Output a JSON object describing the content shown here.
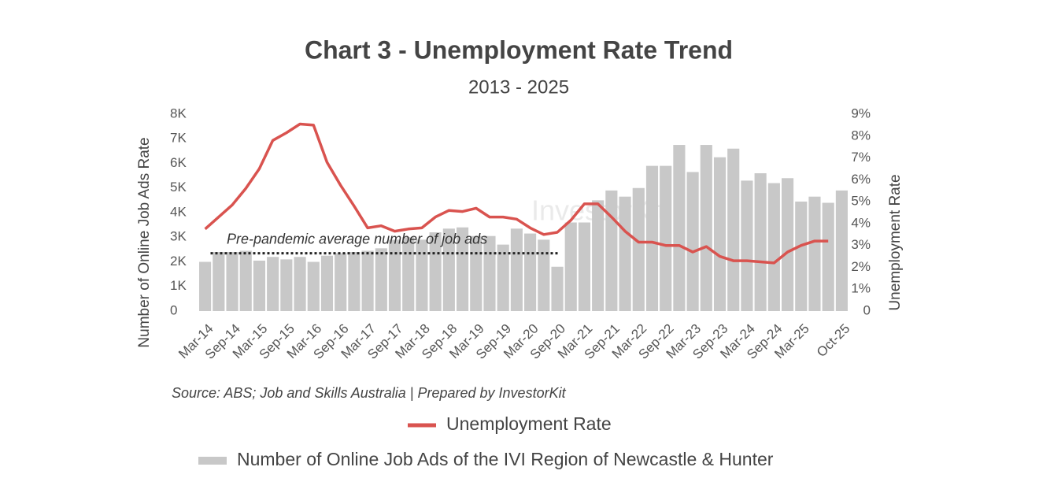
{
  "chart_data": {
    "type": "bar-line",
    "title": "Chart 3 - Unemployment Rate Trend",
    "subtitle": "2013 - 2025",
    "y_label": "Number of Online Job Ads Rate",
    "y2_label": "Unemployment Rate",
    "source": "Source: ABS; Job and Skills Australia | Prepared by InvestorKit",
    "watermark": "InvestorKit",
    "annotation": {
      "label": "Pre-pandemic average number of job ads",
      "value": 2.35
    },
    "categories": [
      "Mar-14",
      null,
      "Sep-14",
      null,
      "Mar-15",
      null,
      "Sep-15",
      null,
      "Mar-16",
      null,
      "Sep-16",
      null,
      "Mar-17",
      null,
      "Sep-17",
      null,
      "Mar-18",
      null,
      "Sep-18",
      null,
      "Mar-19",
      null,
      "Sep-19",
      null,
      "Mar-20",
      null,
      "Sep-20",
      null,
      "Mar-21",
      null,
      "Sep-21",
      null,
      "Mar-22",
      null,
      "Sep-22",
      null,
      "Mar-23",
      null,
      "Sep-23",
      null,
      "Mar-24",
      null,
      "Sep-24",
      null,
      "Mar-25",
      null,
      null,
      "Oct-25"
    ],
    "series": [
      {
        "name": "Number of Online Job Ads of the IVI Region of Newcastle & Hunter",
        "type": "bar",
        "color": "#c8c8c8",
        "values": [
          2.0,
          2.4,
          2.4,
          2.45,
          2.05,
          2.2,
          2.1,
          2.2,
          2.0,
          2.25,
          2.35,
          2.4,
          2.45,
          2.55,
          2.9,
          3.0,
          2.9,
          3.2,
          3.35,
          3.4,
          3.05,
          3.05,
          2.7,
          3.35,
          3.15,
          2.9,
          1.8,
          3.6,
          3.6,
          4.5,
          4.9,
          4.65,
          5.0,
          5.9,
          5.9,
          6.75,
          5.65,
          6.75,
          6.25,
          6.6,
          5.3,
          5.6,
          5.2,
          5.4,
          4.45,
          4.65,
          4.4,
          4.9
        ]
      },
      {
        "name": "Unemployment Rate",
        "type": "line",
        "axis": "y2",
        "color": "#d9534f",
        "values": [
          3.75,
          4.3,
          4.85,
          5.6,
          6.5,
          7.8,
          8.15,
          8.55,
          8.5,
          6.8,
          5.75,
          4.8,
          3.8,
          3.9,
          3.65,
          3.75,
          3.8,
          4.3,
          4.6,
          4.55,
          4.7,
          4.3,
          4.3,
          4.2,
          3.8,
          3.5,
          3.6,
          4.15,
          4.9,
          4.9,
          4.3,
          3.65,
          3.15,
          3.15,
          3.0,
          3.0,
          2.7,
          2.95,
          2.5,
          2.3,
          2.3,
          2.25,
          2.2,
          2.7,
          3.0,
          3.2,
          3.2,
          null
        ]
      }
    ],
    "ylim": [
      0,
      8
    ],
    "yticks": [
      0,
      {
        "value": 1,
        "label": "1K"
      },
      {
        "value": 2,
        "label": "2K"
      },
      {
        "value": 3,
        "label": "3K"
      },
      {
        "value": 4,
        "label": "4K"
      },
      {
        "value": 5,
        "label": "5K"
      },
      {
        "value": 6,
        "label": "6K"
      },
      {
        "value": 7,
        "label": "7K"
      },
      {
        "value": 8,
        "label": "8K"
      }
    ],
    "y2lim": [
      0,
      9
    ],
    "y2ticks": [
      0,
      {
        "value": 1,
        "label": "1%"
      },
      {
        "value": 2,
        "label": "2%"
      },
      {
        "value": 3,
        "label": "3%"
      },
      {
        "value": 4,
        "label": "4%"
      },
      {
        "value": 5,
        "label": "5%"
      },
      {
        "value": 6,
        "label": "6%"
      },
      {
        "value": 7,
        "label": "7%"
      },
      {
        "value": 8,
        "label": "8%"
      },
      {
        "value": 9,
        "label": "9%"
      }
    ]
  }
}
